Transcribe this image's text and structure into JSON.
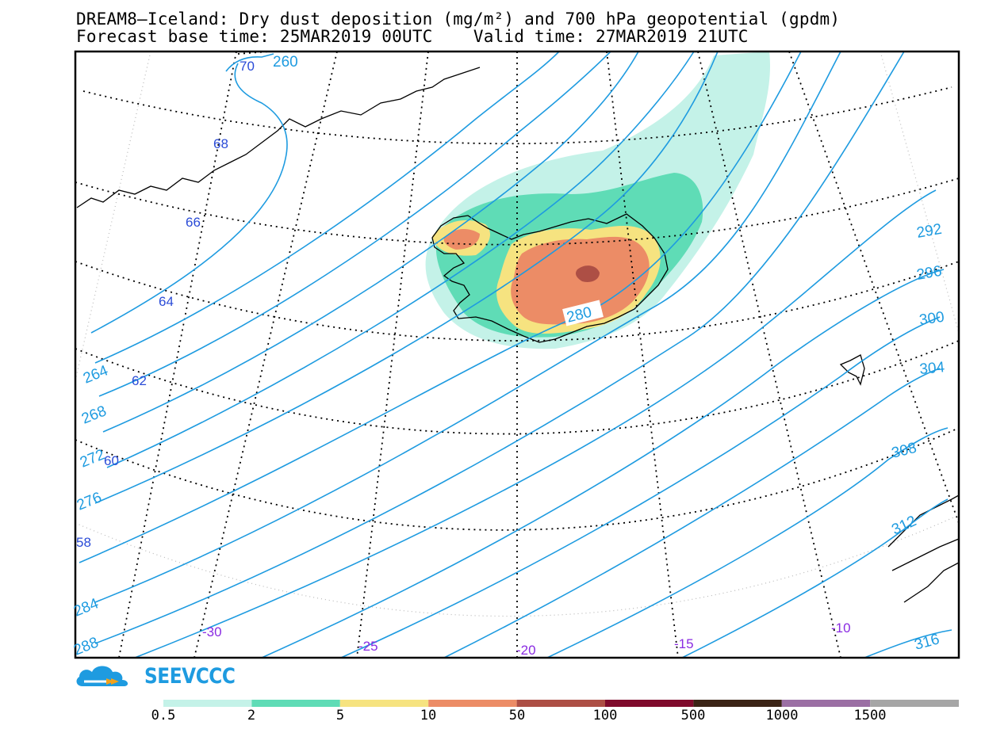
{
  "header": {
    "title_line1": "DREAM8–Iceland: Dry dust deposition (mg/m²) and 700 hPa geopotential (gpdm)",
    "title_line2": "Forecast base time: 25MAR2019 00UTC    Valid time: 27MAR2019 21UTC"
  },
  "map": {
    "region": "Iceland",
    "contour_color": "#1e9be0",
    "contour_labels": [
      "260",
      "264",
      "268",
      "272",
      "276",
      "280",
      "284",
      "288",
      "292",
      "296",
      "300",
      "304",
      "308",
      "312",
      "316"
    ],
    "latitude_labels": [
      "70",
      "68",
      "66",
      "64",
      "62",
      "60",
      "58"
    ],
    "longitude_labels": [
      "-30",
      "-25",
      "-20",
      "-15",
      "-10"
    ],
    "latitude_label_color": "#2a4bd7",
    "longitude_label_color": "#8a2be2"
  },
  "legend": {
    "labels": [
      "0.5",
      "2",
      "5",
      "10",
      "50",
      "100",
      "500",
      "1000",
      "1500"
    ],
    "colors": [
      "#c4f2e8",
      "#5fdcb6",
      "#f6e380",
      "#ec8c66",
      "#ad4f45",
      "#7f0b2c",
      "#3b2416",
      "#9b6fa4",
      "#a6a6a6"
    ]
  },
  "branding": {
    "logo_icon": "cloud-icon",
    "logo_text": "SEEVCCC"
  }
}
